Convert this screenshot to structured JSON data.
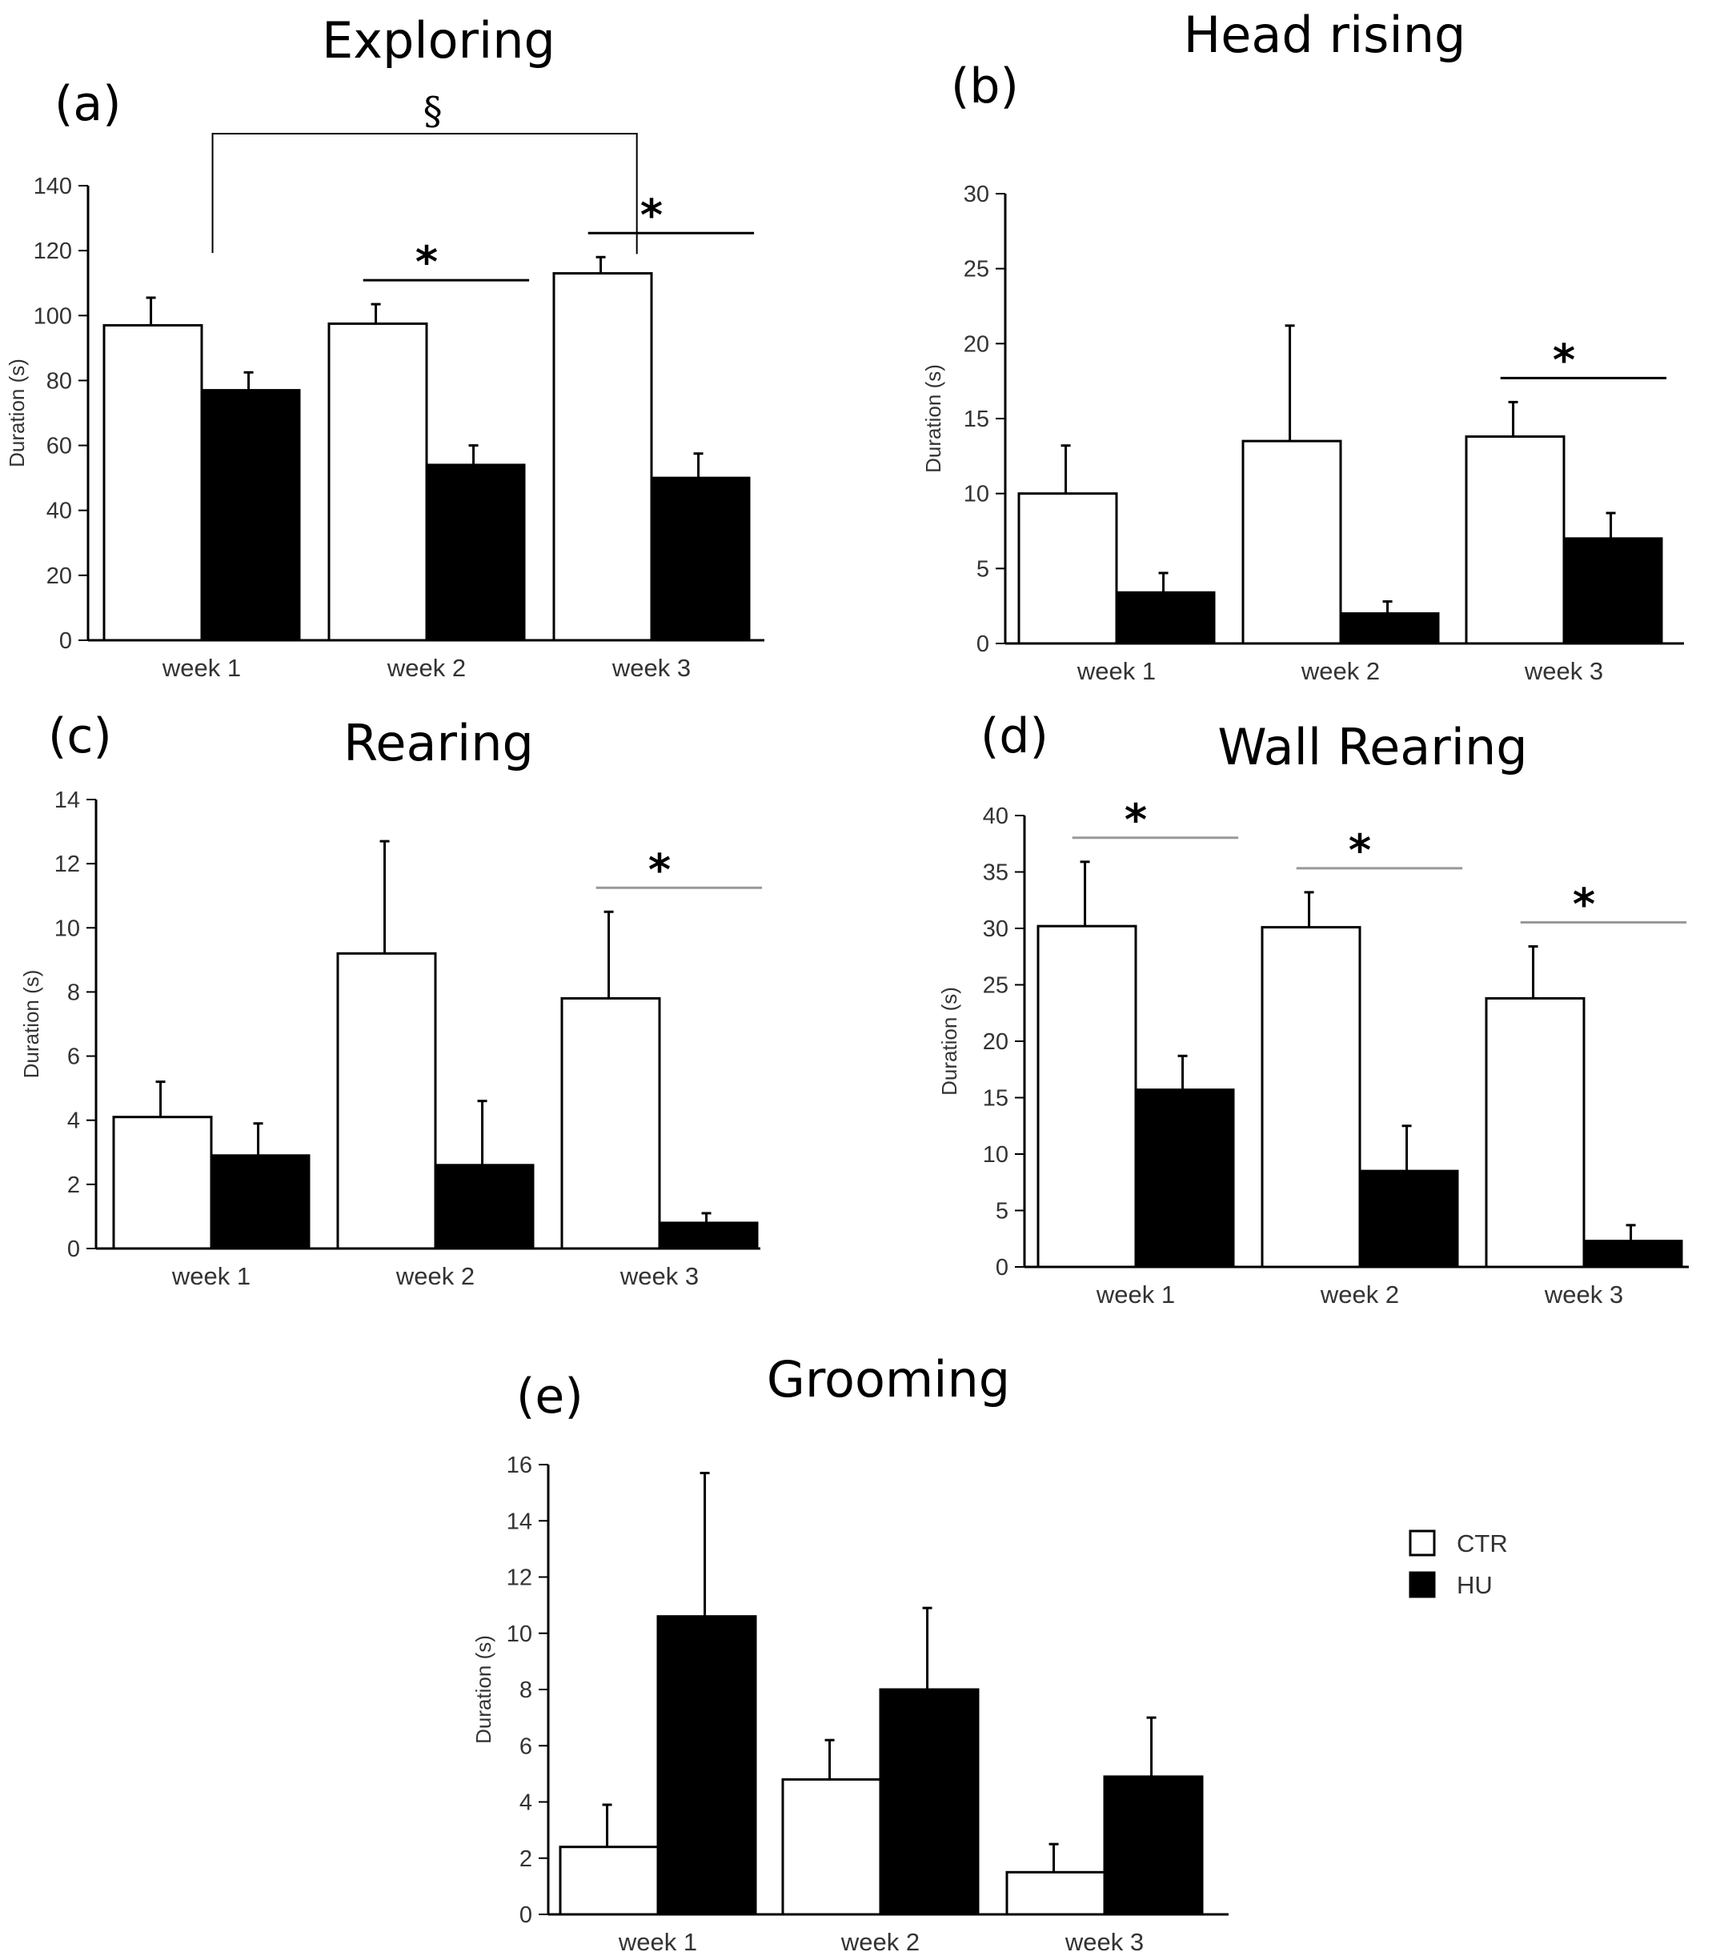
{
  "legend": {
    "items": [
      {
        "name": "CTR",
        "color": "#ffffff"
      },
      {
        "name": "HU",
        "color": "#000000"
      }
    ]
  },
  "chart_data": [
    {
      "id": "a",
      "type": "bar",
      "panel_label": "(a)",
      "title": "Exploring",
      "ylabel": "Duration (s)",
      "xlabel": "",
      "categories": [
        "week 1",
        "week 2",
        "week 3"
      ],
      "ylim": [
        0,
        140
      ],
      "yticks": [
        0,
        20,
        40,
        60,
        80,
        100,
        120,
        140
      ],
      "series": [
        {
          "name": "CTR",
          "values": [
            97,
            97.5,
            113
          ],
          "errors": [
            8.5,
            6,
            5
          ]
        },
        {
          "name": "HU",
          "values": [
            77,
            54,
            50
          ],
          "errors": [
            5.5,
            6,
            7.5
          ]
        }
      ],
      "annotations": [
        {
          "type": "star",
          "text": "*",
          "week": 2
        },
        {
          "type": "star",
          "text": "*",
          "week": 3
        },
        {
          "type": "bracket",
          "text": "§",
          "from": "week 1",
          "to": "week 3"
        }
      ]
    },
    {
      "id": "b",
      "type": "bar",
      "panel_label": "(b)",
      "title": "Head rising",
      "ylabel": "Duration (s)",
      "xlabel": "",
      "categories": [
        "week 1",
        "week 2",
        "week 3"
      ],
      "ylim": [
        0,
        30
      ],
      "yticks": [
        0,
        5,
        10,
        15,
        20,
        25,
        30
      ],
      "series": [
        {
          "name": "CTR",
          "values": [
            10,
            13.5,
            13.8
          ],
          "errors": [
            3.2,
            7.7,
            2.3
          ]
        },
        {
          "name": "HU",
          "values": [
            3.4,
            2,
            7
          ],
          "errors": [
            1.3,
            0.8,
            1.7
          ]
        }
      ],
      "annotations": [
        {
          "type": "star",
          "text": "*",
          "week": 3
        }
      ]
    },
    {
      "id": "c",
      "type": "bar",
      "panel_label": "(c)",
      "title": "Rearing",
      "ylabel": "Duration (s)",
      "xlabel": "",
      "categories": [
        "week 1",
        "week 2",
        "week 3"
      ],
      "ylim": [
        0,
        14
      ],
      "yticks": [
        0,
        2,
        4,
        6,
        8,
        10,
        12,
        14
      ],
      "series": [
        {
          "name": "CTR",
          "values": [
            4.1,
            9.2,
            7.8
          ],
          "errors": [
            1.1,
            3.5,
            2.7
          ]
        },
        {
          "name": "HU",
          "values": [
            2.9,
            2.6,
            0.8
          ],
          "errors": [
            1,
            2,
            0.3
          ]
        }
      ],
      "annotations": [
        {
          "type": "star",
          "text": "*",
          "week": 3
        }
      ]
    },
    {
      "id": "d",
      "type": "bar",
      "panel_label": "(d)",
      "title": "Wall Rearing",
      "ylabel": "Duration (s)",
      "xlabel": "",
      "categories": [
        "week 1",
        "week 2",
        "week 3"
      ],
      "ylim": [
        0,
        40
      ],
      "yticks": [
        0,
        5,
        10,
        15,
        20,
        25,
        30,
        35,
        40
      ],
      "series": [
        {
          "name": "CTR",
          "values": [
            30.2,
            30.1,
            23.8
          ],
          "errors": [
            5.7,
            3.1,
            4.6
          ]
        },
        {
          "name": "HU",
          "values": [
            15.7,
            8.5,
            2.3
          ],
          "errors": [
            3,
            4,
            1.4
          ]
        }
      ],
      "annotations": [
        {
          "type": "star",
          "text": "*",
          "week": 1
        },
        {
          "type": "star",
          "text": "*",
          "week": 2
        },
        {
          "type": "star",
          "text": "*",
          "week": 3
        }
      ]
    },
    {
      "id": "e",
      "type": "bar",
      "panel_label": "(e)",
      "title": "Grooming",
      "ylabel": "Duration (s)",
      "xlabel": "",
      "categories": [
        "week 1",
        "week 2",
        "week 3"
      ],
      "ylim": [
        0,
        16
      ],
      "yticks": [
        0,
        2,
        4,
        6,
        8,
        10,
        12,
        14,
        16
      ],
      "series": [
        {
          "name": "CTR",
          "values": [
            2.4,
            4.8,
            1.5
          ],
          "errors": [
            1.5,
            1.4,
            1
          ]
        },
        {
          "name": "HU",
          "values": [
            10.6,
            8,
            4.9
          ],
          "errors": [
            5.1,
            2.9,
            2.1
          ]
        }
      ],
      "annotations": []
    }
  ]
}
